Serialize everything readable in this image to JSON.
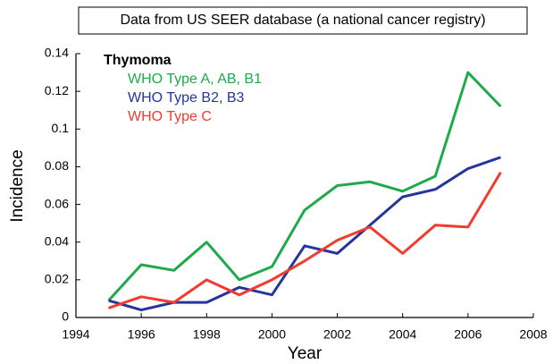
{
  "chart_data": {
    "type": "line",
    "title": "Data from US SEER database (a national cancer registry)",
    "legend_title": "Thymoma",
    "x_label": "Year",
    "y_label": "Incidence",
    "x": [
      1995,
      1996,
      1997,
      1998,
      1999,
      2000,
      2001,
      2002,
      2003,
      2004,
      2005,
      2006,
      2007
    ],
    "series": [
      {
        "name": "WHO Type A, AB, B1",
        "color": "#1faa4a",
        "values": [
          0.009,
          0.028,
          0.025,
          0.04,
          0.02,
          0.027,
          0.057,
          0.07,
          0.072,
          0.067,
          0.075,
          0.13,
          0.112
        ]
      },
      {
        "name": "WHO Type B2, B3",
        "color": "#26359b",
        "values": [
          0.009,
          0.004,
          0.008,
          0.008,
          0.016,
          0.012,
          0.038,
          0.034,
          0.049,
          0.064,
          0.068,
          0.079,
          0.085
        ]
      },
      {
        "name": "WHO Type C",
        "color": "#f23a2f",
        "values": [
          0.005,
          0.011,
          0.008,
          0.02,
          0.012,
          0.02,
          0.03,
          0.041,
          0.048,
          0.034,
          0.049,
          0.048,
          0.077
        ]
      }
    ],
    "xlim": [
      1994,
      2008
    ],
    "xticks": [
      1994,
      1996,
      1998,
      2000,
      2002,
      2004,
      2006,
      2008
    ],
    "ylim": [
      0,
      0.14
    ],
    "yticks": [
      0,
      0.02,
      0.04,
      0.06,
      0.08,
      0.1,
      0.12,
      0.14
    ],
    "grid": false
  }
}
